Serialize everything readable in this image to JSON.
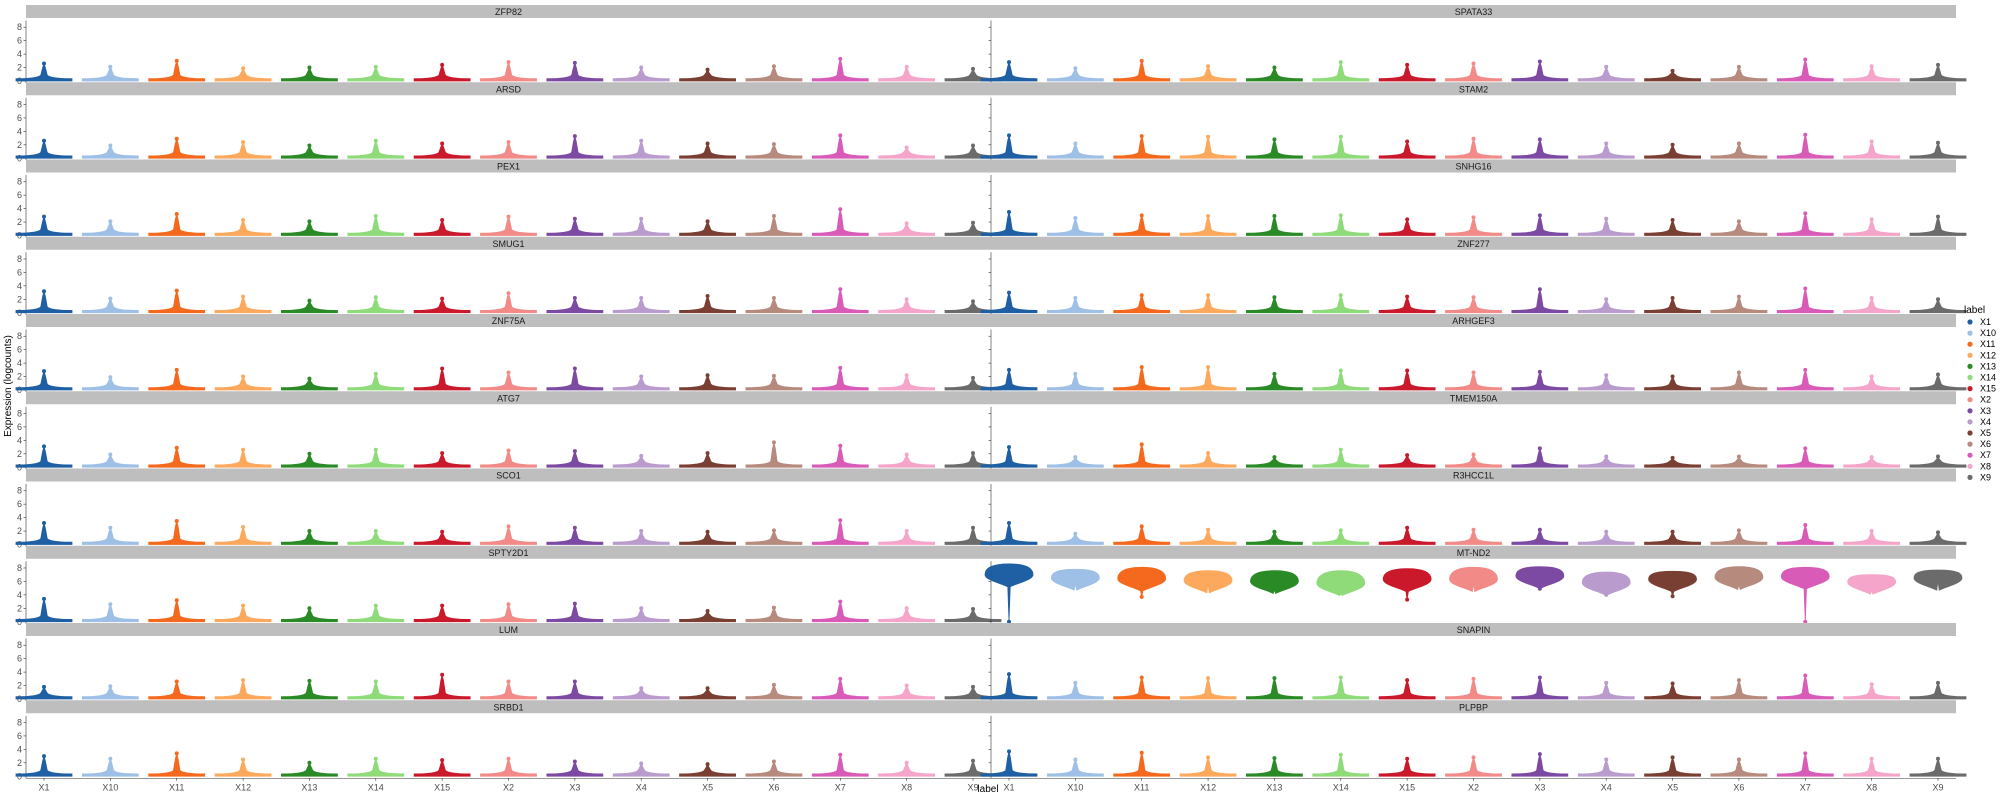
{
  "chart_data": {
    "type": "violin",
    "xlabel": "label",
    "ylabel": "Expression (logcounts)",
    "ylim": [
      0,
      9
    ],
    "yticks": [
      0,
      2,
      4,
      6,
      8
    ],
    "grid": false,
    "legend_position": "right",
    "legend": {
      "title": "label",
      "entries": [
        "X1",
        "X10",
        "X11",
        "X12",
        "X13",
        "X14",
        "X15",
        "X2",
        "X3",
        "X4",
        "X5",
        "X6",
        "X7",
        "X8",
        "X9"
      ]
    },
    "categories": [
      "X1",
      "X10",
      "X11",
      "X12",
      "X13",
      "X14",
      "X15",
      "X2",
      "X3",
      "X4",
      "X5",
      "X6",
      "X7",
      "X8",
      "X9"
    ],
    "colors": [
      "#1f5fa3",
      "#9ebfe6",
      "#f4691d",
      "#fca95e",
      "#2a8a26",
      "#8fdb7a",
      "#c9192a",
      "#f28a87",
      "#7d4aa3",
      "#b99ccd",
      "#7a3f33",
      "#b78a7e",
      "#d95bb8",
      "#f4a5c9",
      "#6b6b6b"
    ],
    "panels": [
      {
        "gene": "ZFP82",
        "max": [
          2.6,
          2.1,
          3.0,
          1.9,
          2.0,
          2.1,
          2.4,
          2.8,
          2.7,
          2.0,
          1.7,
          2.2,
          3.3,
          2.1,
          1.8
        ],
        "median": [
          0,
          0,
          0,
          0,
          0,
          0,
          0,
          0,
          0,
          0,
          0,
          0,
          0,
          0,
          0
        ]
      },
      {
        "gene": "SPATA33",
        "max": [
          2.8,
          1.9,
          3.0,
          2.2,
          2.0,
          2.8,
          2.4,
          2.6,
          2.9,
          2.1,
          1.5,
          2.1,
          3.2,
          2.2,
          2.4
        ],
        "median": [
          0,
          0,
          0,
          0,
          0,
          0,
          0,
          0,
          0,
          0,
          0,
          0,
          0,
          0,
          0
        ]
      },
      {
        "gene": "ARSD",
        "max": [
          2.6,
          1.9,
          2.9,
          2.4,
          1.9,
          2.6,
          2.2,
          2.4,
          3.3,
          2.6,
          2.2,
          2.1,
          3.4,
          1.6,
          1.9
        ],
        "median": [
          0,
          0,
          0,
          0,
          0,
          0,
          0,
          0,
          0,
          0,
          0,
          0,
          0,
          0,
          0
        ]
      },
      {
        "gene": "STAM2",
        "max": [
          3.4,
          2.2,
          3.3,
          3.2,
          2.8,
          3.2,
          2.5,
          2.9,
          2.8,
          2.2,
          2.0,
          2.2,
          3.5,
          2.5,
          2.3
        ],
        "median": [
          0,
          0,
          0,
          0,
          0,
          0,
          0,
          0,
          0,
          0,
          0,
          0,
          0,
          0,
          0
        ]
      },
      {
        "gene": "PEX1",
        "max": [
          2.8,
          2.1,
          3.2,
          2.3,
          2.1,
          2.9,
          2.3,
          2.8,
          2.5,
          2.5,
          2.1,
          2.9,
          3.9,
          1.8,
          1.9
        ],
        "median": [
          0,
          0,
          0,
          0,
          0,
          0,
          0,
          0,
          0,
          0,
          0,
          0,
          0,
          0,
          0
        ]
      },
      {
        "gene": "SNHG16",
        "max": [
          3.5,
          2.6,
          3.0,
          2.9,
          2.9,
          3.0,
          2.4,
          2.7,
          3.0,
          2.5,
          2.3,
          2.1,
          3.3,
          2.4,
          2.8
        ],
        "median": [
          0,
          0,
          0,
          0,
          0,
          0,
          0,
          0,
          0,
          0,
          0,
          0,
          0,
          0,
          0
        ]
      },
      {
        "gene": "SMUG1",
        "max": [
          3.2,
          2.1,
          3.3,
          2.4,
          1.8,
          2.3,
          2.1,
          2.9,
          2.2,
          2.2,
          2.5,
          2.2,
          3.5,
          2.0,
          1.7
        ],
        "median": [
          0,
          0,
          0,
          0,
          0,
          0,
          0,
          0,
          0,
          0,
          0,
          0,
          0,
          0,
          0
        ]
      },
      {
        "gene": "ZNF277",
        "max": [
          3.0,
          2.2,
          2.6,
          2.6,
          2.3,
          2.6,
          2.4,
          2.3,
          3.5,
          2.0,
          2.2,
          2.4,
          3.6,
          2.2,
          2.0
        ],
        "median": [
          0,
          0,
          0,
          0,
          0,
          0,
          0,
          0,
          0,
          0,
          0,
          0,
          0,
          0,
          0
        ]
      },
      {
        "gene": "ZNF75A",
        "max": [
          2.8,
          1.9,
          3.0,
          2.0,
          1.7,
          2.4,
          3.2,
          2.6,
          3.2,
          2.0,
          2.2,
          2.1,
          3.3,
          2.2,
          1.8
        ],
        "median": [
          0,
          0,
          0,
          0,
          0,
          0,
          0,
          0,
          0,
          0,
          0,
          0,
          0,
          0,
          0
        ]
      },
      {
        "gene": "ARHGEF3",
        "max": [
          3.0,
          2.4,
          3.4,
          3.4,
          2.4,
          2.9,
          2.9,
          2.6,
          2.7,
          2.2,
          2.0,
          2.6,
          3.0,
          2.0,
          2.3
        ],
        "median": [
          0,
          0,
          0,
          0,
          0,
          0,
          0,
          0,
          0,
          0,
          0,
          0,
          0,
          0,
          0
        ]
      },
      {
        "gene": "ATG7",
        "max": [
          3.1,
          1.9,
          2.9,
          2.6,
          2.0,
          2.6,
          2.1,
          2.5,
          2.4,
          1.7,
          2.1,
          3.7,
          3.2,
          1.9,
          2.1
        ],
        "median": [
          0,
          0,
          0,
          0,
          0,
          0,
          0,
          0,
          0,
          0,
          0,
          0,
          0,
          0,
          0
        ]
      },
      {
        "gene": "TMEM150A",
        "max": [
          3.0,
          1.5,
          3.4,
          2.1,
          1.5,
          2.6,
          1.8,
          1.9,
          2.8,
          1.6,
          1.4,
          1.6,
          2.8,
          1.5,
          1.6
        ],
        "median": [
          0,
          0,
          0,
          0,
          0,
          0,
          0,
          0,
          0,
          0,
          0,
          0,
          0,
          0,
          0
        ]
      },
      {
        "gene": "SCO1",
        "max": [
          3.2,
          2.5,
          3.5,
          2.6,
          2.0,
          2.0,
          1.9,
          2.7,
          2.5,
          2.0,
          1.9,
          2.1,
          3.6,
          2.0,
          2.5
        ],
        "median": [
          0,
          0,
          0,
          0,
          0,
          0,
          0,
          0,
          0,
          0,
          0,
          0,
          0,
          0,
          0
        ]
      },
      {
        "gene": "R3HCC1L",
        "max": [
          3.2,
          1.6,
          2.7,
          2.2,
          1.9,
          2.1,
          2.5,
          2.2,
          2.2,
          1.9,
          1.9,
          2.1,
          2.9,
          2.0,
          1.8
        ],
        "median": [
          0,
          0,
          0,
          0,
          0,
          0,
          0,
          0,
          0,
          0,
          0,
          0,
          0,
          0,
          0
        ]
      },
      {
        "gene": "SPTY2D1",
        "max": [
          3.4,
          2.6,
          3.2,
          2.4,
          2.0,
          2.4,
          2.4,
          2.6,
          2.7,
          2.0,
          1.6,
          2.1,
          3.0,
          2.0,
          1.9
        ],
        "median": [
          0,
          0,
          0,
          0,
          0,
          0,
          0,
          0,
          0,
          0,
          0,
          0,
          0,
          0,
          0
        ]
      },
      {
        "gene": "MT-ND2",
        "max": [
          8.6,
          7.8,
          8.1,
          7.6,
          7.6,
          7.6,
          7.9,
          8.1,
          8.2,
          7.4,
          7.5,
          8.2,
          8.1,
          7.0,
          7.7
        ],
        "min": [
          0,
          5.7,
          3.7,
          5.6,
          4.8,
          4.3,
          3.3,
          5.7,
          4.9,
          4.0,
          3.8,
          5.6,
          0,
          4.7,
          6.1
        ],
        "median": [
          7.0,
          6.5,
          6.4,
          6.1,
          6.0,
          5.7,
          6.3,
          6.3,
          6.8,
          5.8,
          6.3,
          6.6,
          6.7,
          5.9,
          6.5
        ]
      },
      {
        "gene": "LUM",
        "max": [
          1.8,
          1.9,
          2.6,
          2.8,
          2.7,
          2.6,
          3.6,
          2.6,
          2.6,
          1.6,
          1.6,
          2.1,
          3.0,
          2.0,
          1.8
        ],
        "median": [
          0,
          0,
          0,
          0,
          0,
          0,
          0,
          0,
          0,
          0,
          0,
          0,
          0,
          0,
          0
        ]
      },
      {
        "gene": "SNAPIN",
        "max": [
          3.7,
          2.4,
          3.2,
          3.1,
          3.1,
          3.2,
          2.8,
          3.0,
          3.2,
          2.4,
          2.3,
          2.8,
          3.5,
          2.2,
          2.4
        ],
        "median": [
          0,
          0,
          0,
          0,
          0,
          0,
          0,
          0,
          0,
          0,
          0,
          0,
          0,
          0,
          0
        ]
      },
      {
        "gene": "SRBD1",
        "max": [
          3.0,
          2.6,
          3.4,
          2.5,
          2.0,
          2.6,
          2.4,
          2.6,
          2.2,
          1.9,
          1.8,
          2.2,
          3.2,
          2.0,
          2.3
        ],
        "median": [
          0,
          0,
          0,
          0,
          0,
          0,
          0,
          0,
          0,
          0,
          0,
          0,
          0,
          0,
          0
        ]
      },
      {
        "gene": "PLPBP",
        "max": [
          3.7,
          2.5,
          3.5,
          2.8,
          2.7,
          3.2,
          2.6,
          2.8,
          3.3,
          2.5,
          2.8,
          2.5,
          3.4,
          2.6,
          2.6
        ],
        "median": [
          0,
          0,
          0,
          0,
          0,
          0,
          0,
          0,
          0,
          0,
          0,
          0,
          0,
          0,
          0
        ]
      }
    ]
  }
}
